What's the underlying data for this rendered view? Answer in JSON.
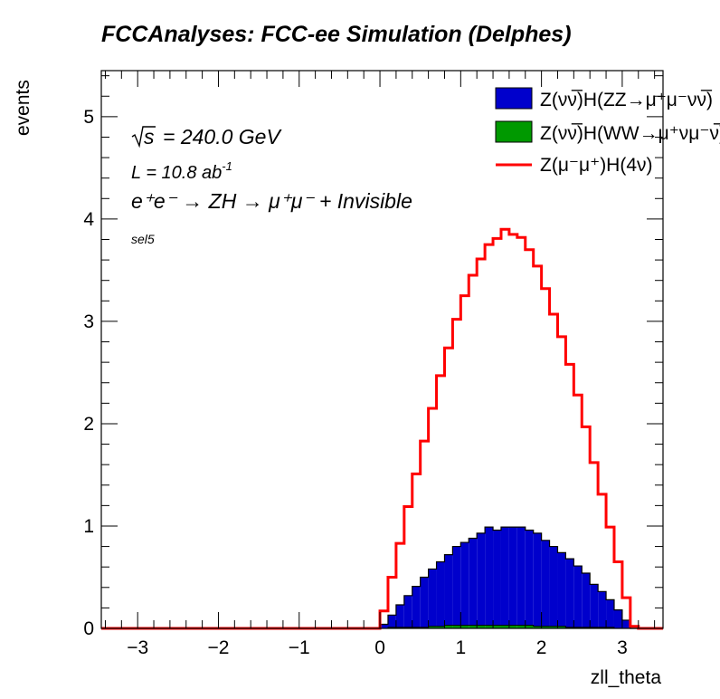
{
  "chart_data": {
    "type": "histogram-stack",
    "title": "FCCAnalyses: FCC-ee Simulation (Delphes)",
    "xlabel": "zll_theta",
    "ylabel": "events",
    "xlim": [
      -3.45,
      3.505
    ],
    "ylim": [
      0,
      5.45
    ],
    "x_ticks": [
      -3,
      -2,
      -1,
      0,
      1,
      2,
      3
    ],
    "x_tick_labels": [
      "−3",
      "−2",
      "−1",
      "0",
      "1",
      "2",
      "3"
    ],
    "y_ticks": [
      0,
      1,
      2,
      3,
      4,
      5
    ],
    "y_tick_labels": [
      "0",
      "1",
      "2",
      "3",
      "4",
      "5"
    ],
    "bin_start": 0.0,
    "bin_width": 0.1,
    "legend_position": "top-right",
    "series": [
      {
        "name": "Z(νν̅)H(ZZ→μ⁺μ⁻νν̅)",
        "style": "filled-stack",
        "color": "#0000cc",
        "values": [
          0.04,
          0.12,
          0.22,
          0.31,
          0.4,
          0.49,
          0.56,
          0.63,
          0.69,
          0.77,
          0.81,
          0.85,
          0.9,
          0.96,
          0.93,
          0.96,
          0.96,
          0.96,
          0.93,
          0.91,
          0.84,
          0.78,
          0.72,
          0.67,
          0.6,
          0.53,
          0.42,
          0.35,
          0.27,
          0.18,
          0.08,
          0.0
        ]
      },
      {
        "name": "Z(νν̅)H(WW→μ⁺νμ⁻ν̅)",
        "style": "filled-stack",
        "color": "#009900",
        "values": [
          0.0,
          0.01,
          0.01,
          0.01,
          0.01,
          0.01,
          0.02,
          0.02,
          0.03,
          0.03,
          0.03,
          0.03,
          0.03,
          0.03,
          0.03,
          0.03,
          0.03,
          0.03,
          0.03,
          0.02,
          0.02,
          0.02,
          0.02,
          0.01,
          0.01,
          0.01,
          0.01,
          0.01,
          0.01,
          0.0,
          0.0,
          0.0
        ]
      },
      {
        "name": "Z(μ⁻μ⁺)H(4ν)",
        "style": "line",
        "color": "#ff0000",
        "values": [
          0.17,
          0.5,
          0.83,
          1.19,
          1.51,
          1.83,
          2.15,
          2.47,
          2.74,
          3.02,
          3.25,
          3.45,
          3.61,
          3.75,
          3.81,
          3.9,
          3.85,
          3.82,
          3.7,
          3.54,
          3.32,
          3.07,
          2.85,
          2.58,
          2.28,
          1.97,
          1.62,
          1.31,
          0.99,
          0.65,
          0.3,
          0.02
        ]
      }
    ],
    "annotations": {
      "sqrt_s": "= 240.0 GeV",
      "sqrt_s_symbol": "s",
      "lumi": "L = 10.8 ab",
      "lumi_exp": "-1",
      "process": "e⁺e⁻ → ZH → μ⁺μ⁻ + Invisible",
      "selection": "sel5"
    }
  }
}
